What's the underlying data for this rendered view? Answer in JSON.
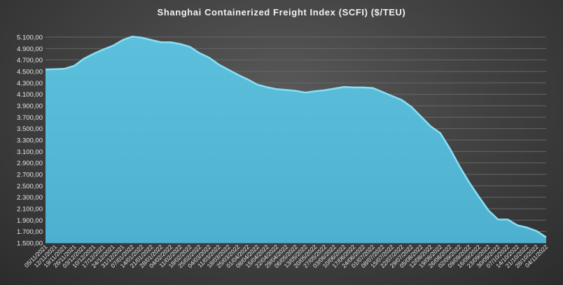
{
  "chart_data": {
    "type": "area",
    "title": "Shanghai Containerized Freight Index  (SCFI)  ($/TEU)",
    "xlabel": "",
    "ylabel": "",
    "ylim": [
      1500,
      5100
    ],
    "yticks": [
      1500,
      1700,
      1900,
      2100,
      2300,
      2500,
      2700,
      2900,
      3100,
      3300,
      3500,
      3700,
      3900,
      4100,
      4300,
      4500,
      4700,
      4900,
      5100
    ],
    "ytick_labels": [
      "1.500,00",
      "1.700,00",
      "1.900,00",
      "2.100,00",
      "2.300,00",
      "2.500,00",
      "2.700,00",
      "2.900,00",
      "3.100,00",
      "3.300,00",
      "3.500,00",
      "3.700,00",
      "3.900,00",
      "4.100,00",
      "4.300,00",
      "4.500,00",
      "4.700,00",
      "4.900,00",
      "5.100,00"
    ],
    "grid": true,
    "fill_color": "#54b7d5",
    "line_color": "#8adff5",
    "x": [
      "05/11/2021",
      "12/11/2021",
      "19/11/2021",
      "26/11/2021",
      "03/12/2021",
      "10/12/2021",
      "17/12/2021",
      "24/12/2021",
      "31/12/2021",
      "07/01/2022",
      "14/01/2022",
      "21/01/2022",
      "28/01/2022",
      "04/02/2022",
      "11/02/2022",
      "18/02/2022",
      "25/02/2022",
      "04/03/2022",
      "11/03/2022",
      "18/03/2022",
      "25/03/2022",
      "01/04/2022",
      "08/04/2022",
      "15/04/2022",
      "22/04/2022",
      "29/04/2022",
      "06/05/2022",
      "13/05/2022",
      "20/05/2022",
      "27/05/2022",
      "03/06/2022",
      "10/06/2022",
      "17/06/2022",
      "24/06/2022",
      "01/07/2022",
      "08/07/2022",
      "15/07/2022",
      "22/07/2022",
      "29/07/2022",
      "05/08/2022",
      "12/08/2022",
      "19/08/2022",
      "26/08/2022",
      "02/09/2022",
      "09/09/2022",
      "16/09/2022",
      "23/09/2022",
      "30/09/2022",
      "07/10/2022",
      "14/10/2022",
      "21/10/2022",
      "28/10/2022",
      "04/11/2022"
    ],
    "values": [
      4535,
      4540,
      4548,
      4600,
      4724,
      4810,
      4883,
      4950,
      5047,
      5110,
      5090,
      5050,
      5010,
      5010,
      4980,
      4930,
      4820,
      4740,
      4620,
      4530,
      4440,
      4360,
      4270,
      4225,
      4190,
      4175,
      4160,
      4130,
      4155,
      4170,
      4200,
      4230,
      4220,
      4220,
      4210,
      4140,
      4070,
      4000,
      3880,
      3710,
      3540,
      3420,
      3150,
      2840,
      2560,
      2310,
      2070,
      1910,
      1910,
      1810,
      1770,
      1710,
      1600
    ]
  }
}
